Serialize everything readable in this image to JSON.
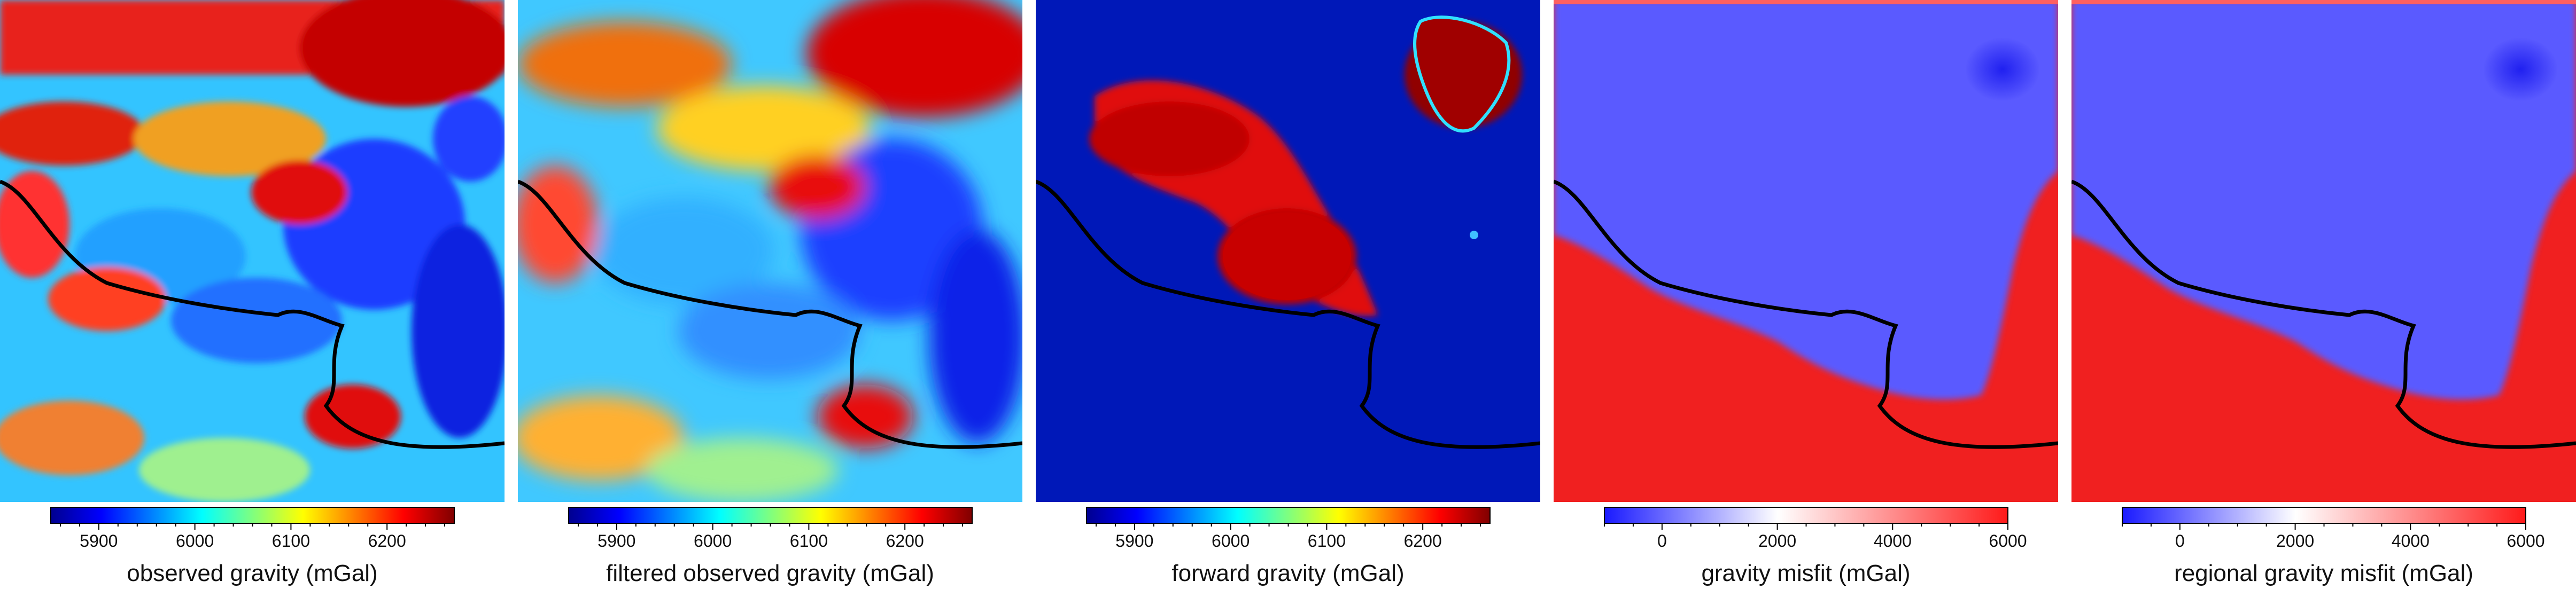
{
  "chart_data": [
    {
      "type": "heatmap",
      "title": "",
      "colormap": "jet",
      "colorbar": {
        "label": "observed gravity (mGal)",
        "range": [
          5850,
          6270
        ],
        "ticks": [
          5900,
          6000,
          6100,
          6200
        ],
        "tick_labels": [
          "5900",
          "6000",
          "6100",
          "6200"
        ],
        "minor_step": 20
      },
      "overlay": "black coastline / grounding line"
    },
    {
      "type": "heatmap",
      "title": "",
      "colormap": "jet",
      "colorbar": {
        "label": "filtered observed gravity (mGal)",
        "range": [
          5850,
          6270
        ],
        "ticks": [
          5900,
          6000,
          6100,
          6200
        ],
        "tick_labels": [
          "5900",
          "6000",
          "6100",
          "6200"
        ],
        "minor_step": 20
      },
      "overlay": "black coastline / grounding line"
    },
    {
      "type": "heatmap",
      "title": "",
      "colormap": "jet",
      "colorbar": {
        "label": "forward gravity (mGal)",
        "range": [
          5850,
          6270
        ],
        "ticks": [
          5900,
          6000,
          6100,
          6200
        ],
        "tick_labels": [
          "5900",
          "6000",
          "6100",
          "6200"
        ],
        "minor_step": 20
      },
      "overlay": "black coastline / grounding line"
    },
    {
      "type": "heatmap",
      "title": "",
      "colormap": "blue-white-red",
      "colorbar": {
        "label": "gravity misfit (mGal)",
        "range": [
          -1000,
          6000
        ],
        "ticks": [
          0,
          2000,
          4000,
          6000
        ],
        "tick_labels": [
          "0",
          "2000",
          "4000",
          "6000"
        ],
        "minor_step": 500
      },
      "overlay": "black coastline / grounding line"
    },
    {
      "type": "heatmap",
      "title": "",
      "colormap": "blue-white-red",
      "colorbar": {
        "label": "regional gravity misfit (mGal)",
        "range": [
          -1000,
          6000
        ],
        "ticks": [
          0,
          2000,
          4000,
          6000
        ],
        "tick_labels": [
          "0",
          "2000",
          "4000",
          "6000"
        ],
        "minor_step": 500
      },
      "overlay": "black coastline / grounding line"
    }
  ]
}
